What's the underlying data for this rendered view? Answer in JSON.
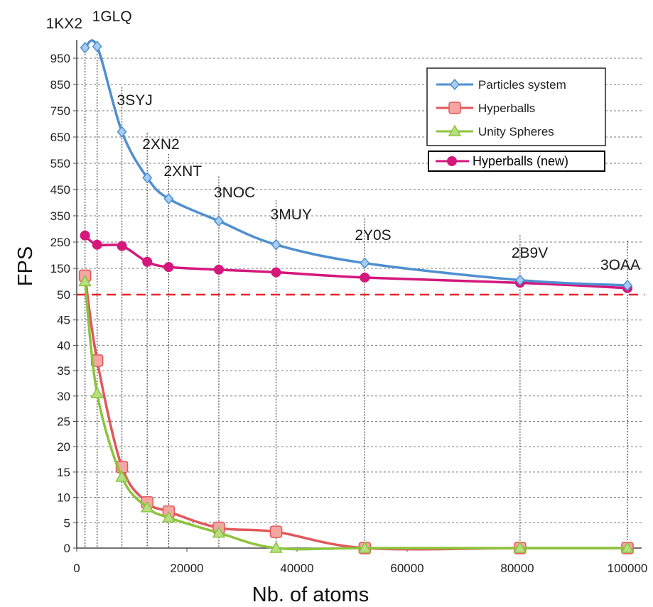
{
  "chart_data": {
    "type": "line",
    "xlabel": "Nb. of atoms",
    "ylabel": "FPS",
    "xlim": [
      0,
      100000
    ],
    "x_ticks": [
      0,
      20000,
      40000,
      60000,
      80000,
      100000
    ],
    "y_ticks": [
      0,
      5,
      10,
      15,
      20,
      25,
      30,
      35,
      40,
      45,
      50,
      150,
      250,
      350,
      450,
      550,
      650,
      750,
      850,
      950
    ],
    "y_scale": "piecewise: 0-50 step 5 in lower region, 50-950 step 100 in upper region",
    "grid": true,
    "threshold_line": {
      "y": 50,
      "color": "#e8232a",
      "style": "dashed"
    },
    "annotations": [
      {
        "label": "1KX2",
        "x": 1500
      },
      {
        "label": "1GLQ",
        "x": 3700
      },
      {
        "label": "3SYJ",
        "x": 8200
      },
      {
        "label": "2XN2",
        "x": 12800
      },
      {
        "label": "2XNT",
        "x": 16700
      },
      {
        "label": "3NOC",
        "x": 25800
      },
      {
        "label": "3MUY",
        "x": 36200
      },
      {
        "label": "2Y0S",
        "x": 52300
      },
      {
        "label": "2B9V",
        "x": 80500
      },
      {
        "label": "3OAA",
        "x": 100000
      }
    ],
    "legend": {
      "position": "top-right"
    },
    "series": [
      {
        "name": "Particles system",
        "color": "#4f8fd0",
        "marker": "diamond",
        "x": [
          1500,
          3700,
          8200,
          12800,
          16700,
          25800,
          36200,
          52300,
          80500,
          100000
        ],
        "y": [
          990,
          995,
          670,
          495,
          415,
          330,
          240,
          170,
          105,
          85
        ]
      },
      {
        "name": "Hyperballs",
        "color": "#e2575b",
        "marker": "square",
        "x": [
          1500,
          3700,
          8200,
          12800,
          16700,
          25800,
          36200,
          52300,
          80500,
          100000
        ],
        "y": [
          122,
          37,
          16,
          9,
          7.2,
          4,
          3.2,
          0,
          0,
          0
        ]
      },
      {
        "name": "Unity Spheres",
        "color": "#8cc43c",
        "marker": "triangle",
        "x": [
          1500,
          3700,
          8200,
          12800,
          16700,
          25800,
          36200,
          52300,
          80500,
          100000
        ],
        "y": [
          100,
          30.5,
          14,
          8,
          6,
          3,
          0,
          0,
          0,
          0
        ]
      },
      {
        "name": "Hyperballs (new)",
        "color": "#d4187c",
        "marker": "circle",
        "x": [
          1500,
          3700,
          8200,
          12800,
          16700,
          25800,
          36200,
          52300,
          80500,
          100000
        ],
        "y": [
          275,
          240,
          235,
          175,
          155,
          145,
          135,
          115,
          95,
          75
        ]
      }
    ]
  }
}
